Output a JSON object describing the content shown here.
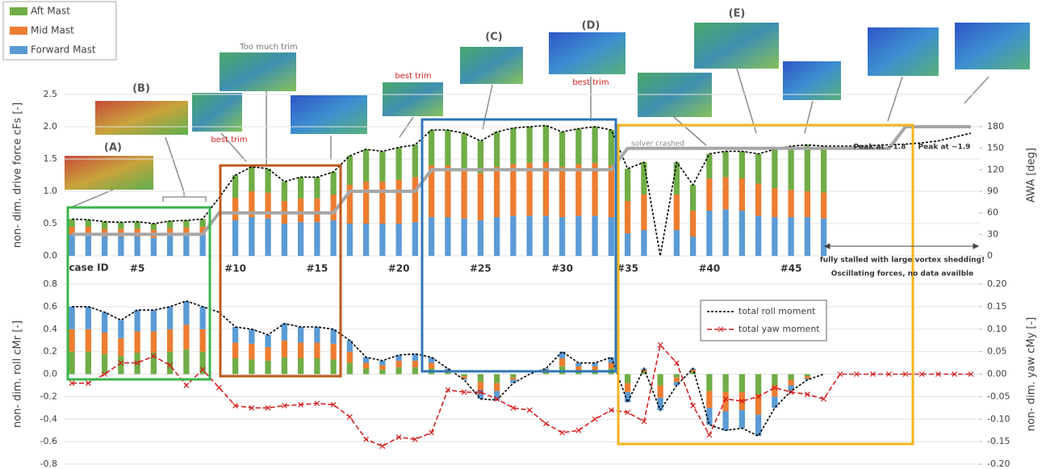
{
  "chart_data": [
    {
      "type": "bar",
      "stacked": true,
      "ylabel": "non- dim. drive force cFs [-]",
      "y2label": "AWA [deg]",
      "legend_position": "top-left",
      "grid": true,
      "categories": [
        null,
        null,
        null,
        null,
        "#5",
        null,
        null,
        null,
        null,
        null,
        "#10",
        null,
        null,
        null,
        null,
        "#15",
        null,
        null,
        null,
        null,
        "#20",
        null,
        null,
        null,
        null,
        "#25",
        null,
        null,
        null,
        null,
        "#30",
        null,
        null,
        null,
        "#35",
        null,
        null,
        null,
        null,
        "#40",
        null,
        null,
        null,
        null,
        "#45",
        null,
        null,
        null,
        null,
        null,
        null,
        null,
        null,
        null,
        null,
        null
      ],
      "ylim": [
        0,
        2.5
      ],
      "yticks": [
        {
          "value": 0,
          "label": "0.0"
        },
        0.5,
        {
          "value": 1,
          "label": "1.0"
        },
        1.5,
        {
          "value": 2,
          "label": "2.0"
        },
        2.5
      ],
      "y2lim": [
        0,
        225
      ],
      "y2ticks": [
        0,
        30,
        60,
        90,
        120,
        150,
        180
      ],
      "series": [
        {
          "name": "Forward Mast",
          "type": "bar",
          "color": "#5b9bd5",
          "values": [
            0.33,
            0.33,
            0.3,
            0.3,
            0.3,
            0.28,
            0.31,
            0.32,
            0.33,
            null,
            0.55,
            0.6,
            0.58,
            0.5,
            0.52,
            0.52,
            0.55,
            0.5,
            0.5,
            0.5,
            0.5,
            0.52,
            0.6,
            0.6,
            0.58,
            0.55,
            0.6,
            0.62,
            0.62,
            0.62,
            0.6,
            0.62,
            0.62,
            0.6,
            0.35,
            0.4,
            null,
            0.4,
            0.3,
            0.7,
            0.72,
            0.7,
            0.62,
            0.6,
            0.6,
            0.6,
            0.58,
            null,
            null,
            null,
            null,
            null,
            null,
            null,
            null,
            null
          ]
        },
        {
          "name": "Mid Mast",
          "type": "bar",
          "color": "#ed7d31",
          "values": [
            0.12,
            0.12,
            0.12,
            0.12,
            0.12,
            0.12,
            0.12,
            0.12,
            0.12,
            null,
            0.35,
            0.4,
            0.4,
            0.35,
            0.37,
            0.37,
            0.4,
            0.6,
            0.65,
            0.65,
            0.68,
            0.7,
            0.8,
            0.8,
            0.78,
            0.73,
            0.78,
            0.8,
            0.82,
            0.83,
            0.78,
            0.8,
            0.82,
            0.8,
            0.5,
            0.55,
            null,
            0.55,
            0.4,
            0.5,
            0.5,
            0.5,
            0.5,
            0.45,
            0.42,
            0.4,
            0.4,
            null,
            null,
            null,
            null,
            null,
            null,
            null,
            null,
            null
          ]
        },
        {
          "name": "Aft Mast",
          "type": "bar",
          "color": "#70ad47",
          "values": [
            0.12,
            0.11,
            0.11,
            0.1,
            0.11,
            0.1,
            0.11,
            0.11,
            0.12,
            null,
            0.35,
            0.38,
            0.37,
            0.3,
            0.33,
            0.33,
            0.35,
            0.45,
            0.5,
            0.47,
            0.5,
            0.5,
            0.55,
            0.55,
            0.54,
            0.5,
            0.54,
            0.56,
            0.56,
            0.57,
            0.54,
            0.55,
            0.56,
            0.55,
            0.5,
            0.5,
            null,
            0.5,
            0.4,
            0.38,
            0.4,
            0.42,
            0.46,
            0.6,
            0.68,
            0.72,
            0.72,
            null,
            null,
            null,
            null,
            null,
            null,
            null,
            null,
            null
          ]
        },
        {
          "type": "line",
          "color": "#000000",
          "dash": "dotted",
          "values": [
            0.57,
            0.56,
            0.53,
            0.52,
            0.53,
            0.5,
            0.54,
            0.55,
            0.57,
            0.9,
            1.25,
            1.38,
            1.35,
            1.15,
            1.22,
            1.22,
            1.3,
            1.55,
            1.65,
            1.62,
            1.68,
            1.72,
            1.95,
            1.95,
            1.9,
            1.78,
            1.92,
            1.98,
            2.0,
            2.02,
            1.92,
            1.97,
            2.0,
            1.95,
            1.35,
            1.45,
            0,
            1.45,
            1.1,
            1.58,
            1.62,
            1.62,
            1.58,
            1.65,
            1.7,
            1.72,
            1.7,
            1.7,
            1.7,
            1.71,
            1.72,
            1.73,
            1.75,
            1.78,
            1.84,
            1.9
          ]
        },
        {
          "type": "line",
          "axis": "y2",
          "color": "#a6a6a6",
          "width": 4,
          "values": [
            30,
            30,
            30,
            30,
            30,
            30,
            30,
            30,
            30,
            60,
            60,
            60,
            60,
            60,
            60,
            60,
            60,
            90,
            90,
            90,
            90,
            90,
            120,
            120,
            120,
            120,
            120,
            120,
            120,
            120,
            120,
            120,
            120,
            120,
            150,
            150,
            150,
            150,
            150,
            150,
            150,
            150,
            150,
            150,
            150,
            150,
            150,
            150,
            150,
            150,
            150,
            180,
            180,
            180,
            180,
            180
          ]
        }
      ],
      "annotations": [
        "case ID",
        "(A)",
        "(B)",
        "(C)",
        "(D)",
        "(E)",
        "Too much trim",
        "best trim",
        "best trim",
        "best trim",
        "solver crashed",
        "Peak at ~1.8",
        "Peak at ~1.9",
        "fully stalled with large vortex shedding!",
        "Oscillating forces, no data availble"
      ]
    },
    {
      "type": "bar",
      "stacked": true,
      "ylabel": "non- dim. roll  cMr [-]",
      "y2label": "non- dim. yaw cMy [-]",
      "legend_position": "upper-right",
      "grid": true,
      "ylim": [
        -0.8,
        0.8
      ],
      "yticks": [
        -0.8,
        -0.6,
        -0.4,
        -0.2,
        {
          "value": 0,
          "label": "0.0"
        },
        0.2,
        0.4,
        0.6,
        0.8
      ],
      "y2lim": [
        -0.2,
        0.2
      ],
      "y2ticks": [
        {
          "value": -0.2,
          "label": "-0.20"
        },
        {
          "value": -0.15,
          "label": "-0.15"
        },
        {
          "value": -0.1,
          "label": "-0.10"
        },
        {
          "value": -0.05,
          "label": "-0.05"
        },
        {
          "value": 0,
          "label": "0.00"
        },
        {
          "value": 0.05,
          "label": "0.05"
        },
        {
          "value": 0.1,
          "label": "0.10"
        },
        {
          "value": 0.15,
          "label": "0.15"
        },
        {
          "value": 0.2,
          "label": "0.20"
        }
      ],
      "series": [
        {
          "type": "bar",
          "color": "#70ad47",
          "values": [
            0.2,
            0.2,
            0.18,
            0.16,
            0.19,
            0.19,
            0.2,
            0.22,
            0.2,
            null,
            0.14,
            0.13,
            0.12,
            0.15,
            0.14,
            0.14,
            0.13,
            0.1,
            0.05,
            0.04,
            0.06,
            0.06,
            0.05,
            0.02,
            -0.02,
            -0.07,
            -0.08,
            -0.03,
            0,
            0.02,
            0.07,
            0.03,
            0.03,
            0.05,
            -0.08,
            0.02,
            -0.1,
            -0.03,
            0.02,
            -0.15,
            -0.16,
            -0.16,
            -0.18,
            -0.1,
            -0.05,
            -0.02,
            0,
            null,
            null,
            null,
            null,
            null,
            null,
            null,
            null,
            null
          ]
        },
        {
          "type": "bar",
          "color": "#ed7d31",
          "values": [
            0.2,
            0.2,
            0.19,
            0.16,
            0.19,
            0.19,
            0.2,
            0.22,
            0.2,
            null,
            0.14,
            0.14,
            0.12,
            0.15,
            0.14,
            0.14,
            0.14,
            0.1,
            0.05,
            0.04,
            0.06,
            0.06,
            0.05,
            0.02,
            -0.02,
            -0.07,
            -0.07,
            -0.02,
            0,
            0.02,
            0.07,
            0.04,
            0.04,
            0.05,
            -0.08,
            0.02,
            -0.11,
            -0.04,
            0.02,
            -0.15,
            -0.17,
            -0.16,
            -0.18,
            -0.1,
            -0.05,
            -0.02,
            0,
            null,
            null,
            null,
            null,
            null,
            null,
            null,
            null,
            null
          ]
        },
        {
          "type": "bar",
          "color": "#5b9bd5",
          "values": [
            0.2,
            0.2,
            0.18,
            0.16,
            0.19,
            0.19,
            0.2,
            0.21,
            0.2,
            null,
            0.14,
            0.13,
            0.11,
            0.15,
            0.14,
            0.14,
            0.13,
            0.1,
            0.05,
            0.04,
            0.05,
            0.06,
            0.05,
            0.01,
            -0.01,
            -0.08,
            -0.08,
            -0.03,
            0,
            0.01,
            0.06,
            0.03,
            0.03,
            0.05,
            -0.09,
            0.01,
            -0.11,
            -0.03,
            0.01,
            -0.15,
            -0.17,
            -0.16,
            -0.19,
            -0.1,
            -0.05,
            -0.01,
            0,
            null,
            null,
            null,
            null,
            null,
            null,
            null,
            null,
            null
          ]
        },
        {
          "name": "total roll moment",
          "type": "line",
          "color": "#000000",
          "dash": "dotted",
          "values": [
            0.6,
            0.6,
            0.55,
            0.48,
            0.57,
            0.57,
            0.6,
            0.65,
            0.6,
            0.55,
            0.42,
            0.4,
            0.35,
            0.45,
            0.42,
            0.42,
            0.4,
            0.3,
            0.15,
            0.12,
            0.17,
            0.18,
            0.15,
            0.05,
            -0.05,
            -0.22,
            -0.23,
            -0.08,
            0,
            0.05,
            0.2,
            0.1,
            0.1,
            0.15,
            -0.25,
            0.05,
            -0.32,
            -0.1,
            0.05,
            -0.45,
            -0.5,
            -0.48,
            -0.55,
            -0.3,
            -0.15,
            -0.05,
            0,
            null,
            null,
            null,
            null,
            null,
            null,
            null,
            null,
            null
          ]
        },
        {
          "name": "total yaw moment",
          "type": "line",
          "axis": "y2",
          "color": "#d42020",
          "dash": "dashed",
          "marker": "x",
          "values": [
            -0.02,
            -0.02,
            0,
            0.025,
            0.025,
            0.04,
            0.02,
            -0.025,
            0.01,
            -0.03,
            -0.07,
            -0.075,
            -0.075,
            -0.07,
            -0.068,
            -0.065,
            -0.068,
            -0.095,
            -0.145,
            -0.16,
            -0.14,
            -0.145,
            -0.13,
            -0.035,
            -0.04,
            -0.04,
            -0.055,
            -0.075,
            -0.08,
            -0.11,
            -0.13,
            -0.125,
            -0.1,
            -0.08,
            -0.085,
            -0.105,
            0.065,
            0.025,
            -0.07,
            -0.135,
            -0.055,
            -0.06,
            -0.05,
            -0.03,
            -0.04,
            -0.045,
            -0.055,
            0,
            0,
            0,
            0,
            0,
            0,
            0,
            0,
            0
          ]
        }
      ]
    }
  ]
}
